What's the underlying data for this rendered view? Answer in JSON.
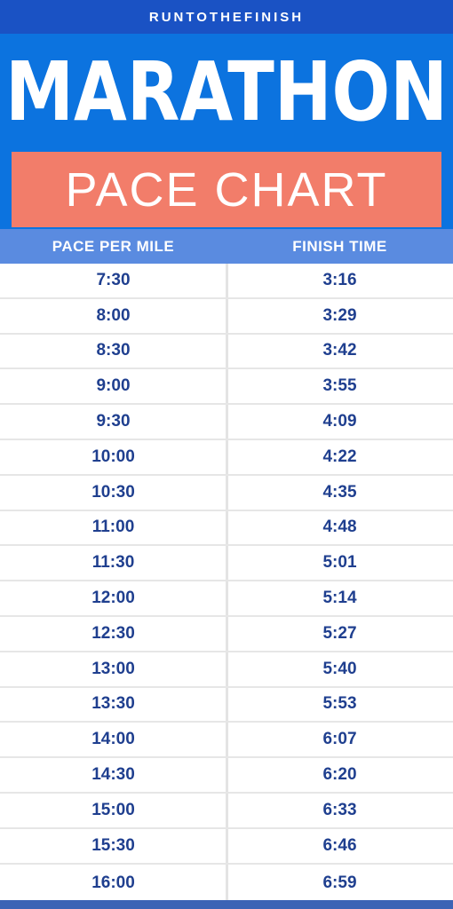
{
  "brand": "RUNTOTHEFINISH",
  "title": "MARATHON",
  "subtitle": "PACE CHART",
  "headers": [
    "PACE PER MILE",
    "FINISH TIME"
  ],
  "rows": [
    {
      "pace": "7:30",
      "finish": "3:16"
    },
    {
      "pace": "8:00",
      "finish": "3:29"
    },
    {
      "pace": "8:30",
      "finish": "3:42"
    },
    {
      "pace": "9:00",
      "finish": "3:55"
    },
    {
      "pace": "9:30",
      "finish": "4:09"
    },
    {
      "pace": "10:00",
      "finish": "4:22"
    },
    {
      "pace": "10:30",
      "finish": "4:35"
    },
    {
      "pace": "11:00",
      "finish": "4:48"
    },
    {
      "pace": "11:30",
      "finish": "5:01"
    },
    {
      "pace": "12:00",
      "finish": "5:14"
    },
    {
      "pace": "12:30",
      "finish": "5:27"
    },
    {
      "pace": "13:00",
      "finish": "5:40"
    },
    {
      "pace": "13:30",
      "finish": "5:53"
    },
    {
      "pace": "14:00",
      "finish": "6:07"
    },
    {
      "pace": "14:30",
      "finish": "6:20"
    },
    {
      "pace": "15:00",
      "finish": "6:33"
    },
    {
      "pace": "15:30",
      "finish": "6:46"
    },
    {
      "pace": "16:00",
      "finish": "6:59"
    }
  ],
  "colors": {
    "brand_bar": "#1a52c4",
    "hero": "#0c73df",
    "subtitle_box": "#f27d6a",
    "table_header": "#5a8be0",
    "cell_text": "#1f3f8f"
  }
}
